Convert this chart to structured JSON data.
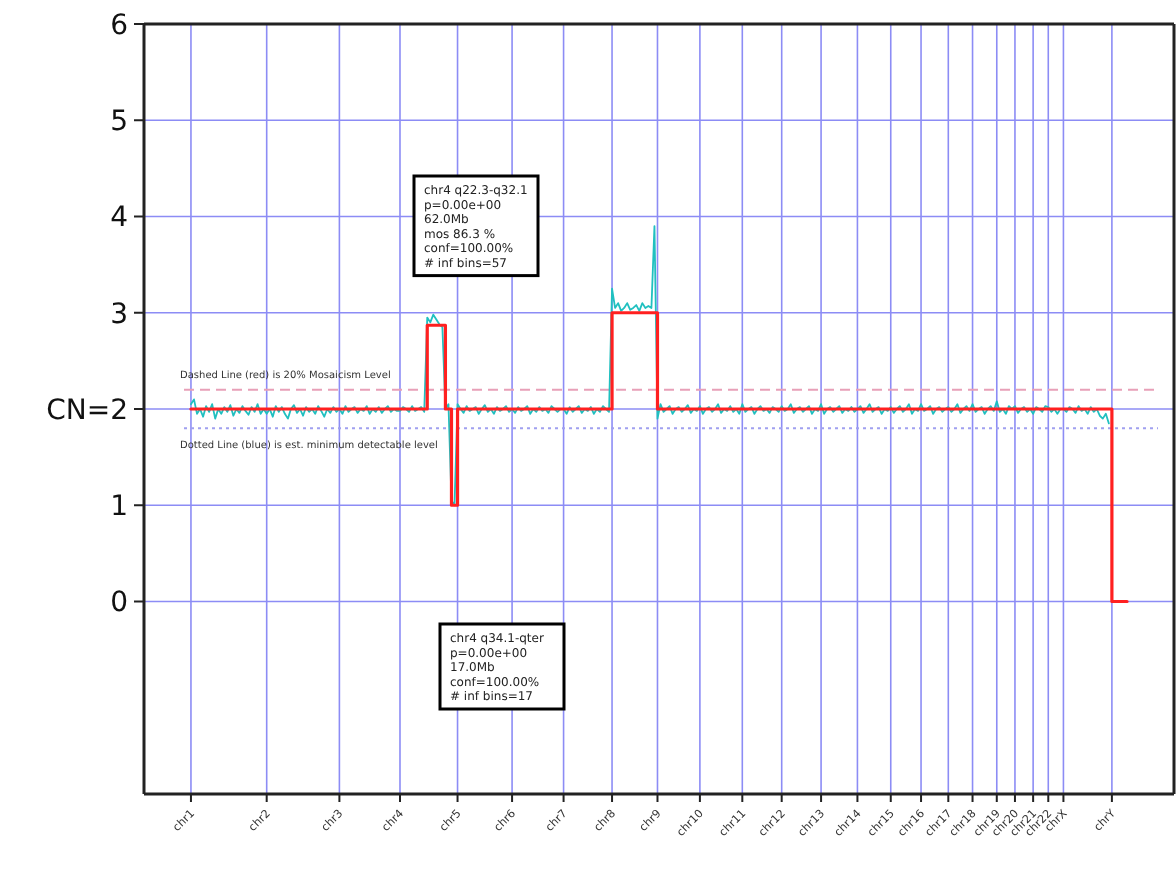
{
  "chart_data": {
    "type": "line",
    "categories": [
      "chr1",
      null,
      null,
      null,
      null,
      null,
      null,
      null,
      null,
      null,
      null,
      null,
      null,
      null,
      null,
      null,
      null,
      null,
      null,
      null,
      null,
      null,
      null,
      null,
      null,
      "chr2",
      null,
      null,
      null,
      null,
      null,
      null,
      null,
      null,
      null,
      null,
      null,
      null,
      null,
      null,
      null,
      null,
      null,
      null,
      null,
      null,
      null,
      null,
      null,
      "chr3",
      null,
      null,
      null,
      null,
      null,
      null,
      null,
      null,
      null,
      null,
      null,
      null,
      null,
      null,
      null,
      null,
      null,
      null,
      null,
      "chr4",
      null,
      null,
      null,
      null,
      null,
      null,
      null,
      null,
      null,
      null,
      null,
      null,
      null,
      null,
      null,
      null,
      null,
      null,
      "chr5",
      null,
      null,
      null,
      null,
      null,
      null,
      null,
      null,
      null,
      null,
      null,
      null,
      null,
      null,
      null,
      null,
      null,
      "chr6",
      null,
      null,
      null,
      null,
      null,
      null,
      null,
      null,
      null,
      null,
      null,
      null,
      null,
      null,
      null,
      null,
      "chr7",
      null,
      null,
      null,
      null,
      null,
      null,
      null,
      null,
      null,
      null,
      null,
      null,
      null,
      null,
      null,
      "chr8",
      null,
      null,
      null,
      null,
      null,
      null,
      null,
      null,
      null,
      null,
      null,
      null,
      null,
      null,
      "chr9",
      null,
      null,
      null,
      null,
      null,
      null,
      null,
      null,
      null,
      null,
      null,
      null,
      null,
      "chr10",
      null,
      null,
      null,
      null,
      null,
      null,
      null,
      null,
      null,
      null,
      null,
      null,
      null,
      "chr11",
      null,
      null,
      null,
      null,
      null,
      null,
      null,
      null,
      null,
      null,
      null,
      null,
      "chr12",
      null,
      null,
      null,
      null,
      null,
      null,
      null,
      null,
      null,
      null,
      null,
      null,
      "chr13",
      null,
      null,
      null,
      null,
      null,
      null,
      null,
      null,
      null,
      null,
      null,
      "chr14",
      null,
      null,
      null,
      null,
      null,
      null,
      null,
      null,
      null,
      null,
      "chr15",
      null,
      null,
      null,
      null,
      null,
      null,
      null,
      null,
      null,
      "chr16",
      null,
      null,
      null,
      null,
      null,
      null,
      null,
      null,
      "chr17",
      null,
      null,
      null,
      null,
      null,
      null,
      null,
      "chr18",
      null,
      null,
      null,
      null,
      null,
      null,
      null,
      "chr19",
      null,
      null,
      null,
      null,
      null,
      "chr20",
      null,
      null,
      null,
      null,
      null,
      "chr21",
      null,
      null,
      null,
      null,
      "chr22",
      null,
      null,
      null,
      null,
      "chrX",
      null,
      null,
      null,
      null,
      null,
      null,
      null,
      null,
      null,
      null,
      null,
      null,
      null,
      null,
      null,
      "chrY",
      null,
      null,
      null,
      null,
      null
    ],
    "ylim": [
      -2,
      6
    ],
    "yticks": [
      0,
      1,
      {
        "value": 2,
        "label": "CN=2"
      },
      3,
      4,
      5,
      6
    ],
    "grid": true,
    "marker": "none",
    "series": [
      {
        "color": "#20c0c0",
        "line_style": "solid",
        "values": [
          2.05,
          2.1,
          1.95,
          2.0,
          1.92,
          2.03,
          1.97,
          2.05,
          1.9,
          2.0,
          1.95,
          2.02,
          1.97,
          2.04,
          1.93,
          2.0,
          1.96,
          2.03,
          1.98,
          1.94,
          2.02,
          1.97,
          2.05,
          1.95,
          2.0,
          1.95,
          2.0,
          1.92,
          2.03,
          1.97,
          2.02,
          1.95,
          1.9,
          2.0,
          2.04,
          1.96,
          2.0,
          1.93,
          2.02,
          1.97,
          2.0,
          1.95,
          2.03,
          1.98,
          1.92,
          2.0,
          1.96,
          2.02,
          1.97,
          2.0,
          1.95,
          2.03,
          1.97,
          2.0,
          2.02,
          1.96,
          2.0,
          1.98,
          2.03,
          1.95,
          2.0,
          1.97,
          2.02,
          1.96,
          2.0,
          2.03,
          1.97,
          2.0,
          1.98,
          1.98,
          2.02,
          2.0,
          1.97,
          2.03,
          1.98,
          2.0,
          2.02,
          1.97,
          2.95,
          2.9,
          2.98,
          2.93,
          2.88,
          2.85,
          2.0,
          2.05,
          1.05,
          1.0,
          2.05,
          2.0,
          1.96,
          2.03,
          1.98,
          2.0,
          2.02,
          1.95,
          2.0,
          2.04,
          1.97,
          2.0,
          1.95,
          2.02,
          1.98,
          2.0,
          2.03,
          1.97,
          2.0,
          1.96,
          2.02,
          1.98,
          2.0,
          2.03,
          1.95,
          2.0,
          1.97,
          2.02,
          1.98,
          2.0,
          1.96,
          2.03,
          2.0,
          1.97,
          2.0,
          2.0,
          1.95,
          2.02,
          1.97,
          2.0,
          2.03,
          1.96,
          2.0,
          1.98,
          2.02,
          1.95,
          2.0,
          1.97,
          2.03,
          2.0,
          1.97,
          3.25,
          3.05,
          3.1,
          3.02,
          3.05,
          3.1,
          3.03,
          3.05,
          3.08,
          3.02,
          3.1,
          3.05,
          3.07,
          3.05,
          3.9,
          1.9,
          2.05,
          1.97,
          2.0,
          2.03,
          1.95,
          2.0,
          2.02,
          1.97,
          2.0,
          2.04,
          1.96,
          2.0,
          1.98,
          2.03,
          1.95,
          2.0,
          2.02,
          1.97,
          2.0,
          2.05,
          1.96,
          2.0,
          1.98,
          2.03,
          1.97,
          2.0,
          1.95,
          2.05,
          1.97,
          2.0,
          2.02,
          1.95,
          2.0,
          2.03,
          1.98,
          2.0,
          1.96,
          2.02,
          2.0,
          1.97,
          2.03,
          1.98,
          2.0,
          2.05,
          1.96,
          2.0,
          2.02,
          1.97,
          2.0,
          2.03,
          1.95,
          2.0,
          1.98,
          2.05,
          1.95,
          2.0,
          2.02,
          1.97,
          2.0,
          2.03,
          1.96,
          2.0,
          1.98,
          2.02,
          1.97,
          2.0,
          2.03,
          1.96,
          2.0,
          2.05,
          1.97,
          2.0,
          2.02,
          1.95,
          2.0,
          1.98,
          2.02,
          1.96,
          2.0,
          2.03,
          1.97,
          2.0,
          2.05,
          1.95,
          2.0,
          1.98,
          2.05,
          1.98,
          2.0,
          2.03,
          1.95,
          2.0,
          2.02,
          1.97,
          2.0,
          2.02,
          1.97,
          2.0,
          2.05,
          1.96,
          2.0,
          2.03,
          1.98,
          2.05,
          1.97,
          2.0,
          2.02,
          1.95,
          2.0,
          2.03,
          1.98,
          2.08,
          1.97,
          2.0,
          1.95,
          2.03,
          2.0,
          2.03,
          1.96,
          2.0,
          2.02,
          1.97,
          2.0,
          1.95,
          2.02,
          2.0,
          1.97,
          2.03,
          2.02,
          1.97,
          2.0,
          1.95,
          2.0,
          2.0,
          1.97,
          2.02,
          2.0,
          1.96,
          2.03,
          1.98,
          2.0,
          1.95,
          2.02,
          1.97,
          2.0,
          1.93,
          1.9,
          1.95,
          1.85,
          null,
          null,
          null,
          null,
          null,
          null
        ]
      },
      {
        "type": "step",
        "color": "#ff2020",
        "line_style": "solid",
        "values": [
          2,
          2,
          2,
          2,
          2,
          2,
          2,
          2,
          2,
          2,
          2,
          2,
          2,
          2,
          2,
          2,
          2,
          2,
          2,
          2,
          2,
          2,
          2,
          2,
          2,
          2,
          2,
          2,
          2,
          2,
          2,
          2,
          2,
          2,
          2,
          2,
          2,
          2,
          2,
          2,
          2,
          2,
          2,
          2,
          2,
          2,
          2,
          2,
          2,
          2,
          2,
          2,
          2,
          2,
          2,
          2,
          2,
          2,
          2,
          2,
          2,
          2,
          2,
          2,
          2,
          2,
          2,
          2,
          2,
          2,
          2,
          2,
          2,
          2,
          2,
          2,
          2,
          2,
          2.87,
          2.87,
          2.87,
          2.87,
          2.87,
          2.87,
          2,
          2,
          1,
          1,
          2,
          2,
          2,
          2,
          2,
          2,
          2,
          2,
          2,
          2,
          2,
          2,
          2,
          2,
          2,
          2,
          2,
          2,
          2,
          2,
          2,
          2,
          2,
          2,
          2,
          2,
          2,
          2,
          2,
          2,
          2,
          2,
          2,
          2,
          2,
          2,
          2,
          2,
          2,
          2,
          2,
          2,
          2,
          2,
          2,
          2,
          2,
          2,
          2,
          2,
          2,
          3,
          3,
          3,
          3,
          3,
          3,
          3,
          3,
          3,
          3,
          3,
          3,
          3,
          3,
          3,
          2,
          2,
          2,
          2,
          2,
          2,
          2,
          2,
          2,
          2,
          2,
          2,
          2,
          2,
          2,
          2,
          2,
          2,
          2,
          2,
          2,
          2,
          2,
          2,
          2,
          2,
          2,
          2,
          2,
          2,
          2,
          2,
          2,
          2,
          2,
          2,
          2,
          2,
          2,
          2,
          2,
          2,
          2,
          2,
          2,
          2,
          2,
          2,
          2,
          2,
          2,
          2,
          2,
          2,
          2,
          2,
          2,
          2,
          2,
          2,
          2,
          2,
          2,
          2,
          2,
          2,
          2,
          2,
          2,
          2,
          2,
          2,
          2,
          2,
          2,
          2,
          2,
          2,
          2,
          2,
          2,
          2,
          2,
          2,
          2,
          2,
          2,
          2,
          2,
          2,
          2,
          2,
          2,
          2,
          2,
          2,
          2,
          2,
          2,
          2,
          2,
          2,
          2,
          2,
          2,
          2,
          2,
          2,
          2,
          2,
          2,
          2,
          2,
          2,
          2,
          2,
          2,
          2,
          2,
          2,
          2,
          2,
          2,
          2,
          2,
          2,
          2,
          2,
          2,
          2,
          2,
          2,
          2,
          2,
          2,
          2,
          2,
          2,
          2,
          2,
          2,
          2,
          2,
          2,
          2,
          2,
          2,
          2,
          2,
          2,
          0,
          0,
          0,
          0,
          0,
          0
        ]
      }
    ],
    "ref_lines": [
      {
        "axis": "y",
        "value": 2.2,
        "label": "Dashed Line (red) is 20% Mosaicism Level",
        "color": "#e8a0b8",
        "line_style": "dashed"
      },
      {
        "axis": "y",
        "value": 1.8,
        "label": "Dotted Line (blue) is est. minimum detectable level",
        "color": "#a0a0f0",
        "line_style": "dotted"
      }
    ],
    "annotations": [
      "chr4 q22.3-q32.1\np=0.00e+00\n62.0Mb\nmos 86.3 %\nconf=100.00%\n# inf bins=57",
      "chr4 q34.1-qter\np=0.00e+00\n17.0Mb\nconf=100.00%\n# inf bins=17"
    ]
  }
}
